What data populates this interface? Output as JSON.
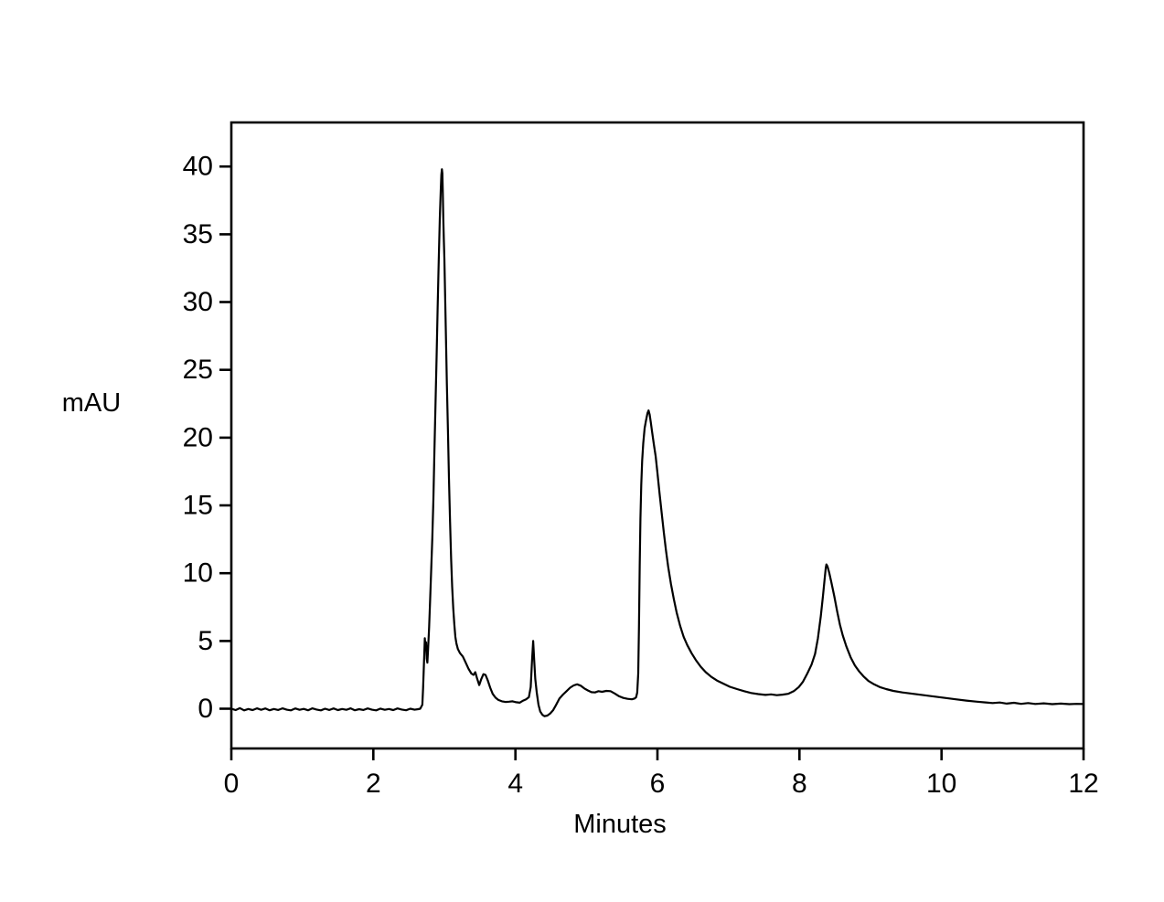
{
  "figure": {
    "kind": "chromatogram",
    "background": "#ffffff"
  },
  "chart_data": {
    "type": "line",
    "title": "",
    "xlabel": "Minutes",
    "ylabel": "mAU",
    "xlim": [
      0,
      12
    ],
    "ylim": [
      -2.93,
      43.25
    ],
    "xticks": [
      0,
      2,
      4,
      6,
      8,
      10,
      12
    ],
    "yticks": [
      0,
      5,
      10,
      15,
      20,
      25,
      30,
      35,
      40
    ],
    "grid": false,
    "legend": "none",
    "frame": "full-box",
    "line_color": "#000000",
    "axis_color": "#000000",
    "background": "#ffffff",
    "baseline_noise_mAU": 0.15,
    "peaks": [
      {
        "retention_min": 2.73,
        "height_mAU": 5.2
      },
      {
        "retention_min": 2.96,
        "height_mAU": 39.8
      },
      {
        "retention_min": 4.25,
        "height_mAU": 5.0
      },
      {
        "retention_min": 5.88,
        "height_mAU": 22.0
      },
      {
        "retention_min": 8.38,
        "height_mAU": 10.7
      }
    ],
    "series": [
      {
        "name": "detector-signal",
        "points": [
          [
            0.0,
            0.0
          ],
          [
            0.06,
            -0.1
          ],
          [
            0.12,
            0.04
          ],
          [
            0.18,
            -0.12
          ],
          [
            0.24,
            -0.02
          ],
          [
            0.3,
            -0.1
          ],
          [
            0.36,
            0.03
          ],
          [
            0.42,
            -0.08
          ],
          [
            0.48,
            0.02
          ],
          [
            0.54,
            -0.11
          ],
          [
            0.6,
            -0.02
          ],
          [
            0.66,
            -0.09
          ],
          [
            0.72,
            0.03
          ],
          [
            0.78,
            -0.07
          ],
          [
            0.84,
            -0.12
          ],
          [
            0.9,
            0.02
          ],
          [
            0.96,
            -0.08
          ],
          [
            1.02,
            -0.01
          ],
          [
            1.08,
            -0.11
          ],
          [
            1.14,
            0.03
          ],
          [
            1.2,
            -0.06
          ],
          [
            1.26,
            -0.12
          ],
          [
            1.32,
            0.0
          ],
          [
            1.38,
            -0.09
          ],
          [
            1.44,
            0.02
          ],
          [
            1.5,
            -0.1
          ],
          [
            1.56,
            -0.02
          ],
          [
            1.62,
            -0.08
          ],
          [
            1.68,
            0.03
          ],
          [
            1.74,
            -0.11
          ],
          [
            1.8,
            -0.03
          ],
          [
            1.86,
            -0.09
          ],
          [
            1.92,
            0.02
          ],
          [
            1.98,
            -0.07
          ],
          [
            2.04,
            -0.12
          ],
          [
            2.1,
            0.01
          ],
          [
            2.16,
            -0.08
          ],
          [
            2.22,
            -0.02
          ],
          [
            2.28,
            -0.1
          ],
          [
            2.34,
            0.02
          ],
          [
            2.4,
            -0.06
          ],
          [
            2.46,
            -0.11
          ],
          [
            2.52,
            0.0
          ],
          [
            2.58,
            -0.07
          ],
          [
            2.63,
            -0.03
          ],
          [
            2.66,
            0.0
          ],
          [
            2.69,
            0.3
          ],
          [
            2.7,
            1.5
          ],
          [
            2.715,
            3.8
          ],
          [
            2.725,
            5.2
          ],
          [
            2.735,
            4.4
          ],
          [
            2.742,
            4.9
          ],
          [
            2.752,
            3.7
          ],
          [
            2.76,
            3.4
          ],
          [
            2.77,
            4.3
          ],
          [
            2.785,
            6.0
          ],
          [
            2.8,
            8.2
          ],
          [
            2.815,
            10.3
          ],
          [
            2.83,
            12.6
          ],
          [
            2.845,
            15.5
          ],
          [
            2.86,
            19.0
          ],
          [
            2.875,
            22.5
          ],
          [
            2.89,
            26.0
          ],
          [
            2.905,
            29.5
          ],
          [
            2.92,
            33.0
          ],
          [
            2.935,
            36.2
          ],
          [
            2.948,
            38.2
          ],
          [
            2.958,
            39.4
          ],
          [
            2.965,
            39.8
          ],
          [
            2.972,
            39.5
          ],
          [
            2.978,
            38.0
          ],
          [
            2.985,
            36.2
          ],
          [
            2.992,
            34.6
          ],
          [
            3.0,
            33.2
          ],
          [
            3.01,
            30.5
          ],
          [
            3.02,
            27.8
          ],
          [
            3.035,
            24.0
          ],
          [
            3.05,
            20.5
          ],
          [
            3.065,
            17.0
          ],
          [
            3.08,
            13.8
          ],
          [
            3.095,
            11.0
          ],
          [
            3.11,
            9.0
          ],
          [
            3.125,
            7.4
          ],
          [
            3.14,
            6.2
          ],
          [
            3.155,
            5.3
          ],
          [
            3.17,
            4.8
          ],
          [
            3.19,
            4.4
          ],
          [
            3.22,
            4.1
          ],
          [
            3.26,
            3.85
          ],
          [
            3.3,
            3.4
          ],
          [
            3.34,
            2.95
          ],
          [
            3.38,
            2.6
          ],
          [
            3.41,
            2.5
          ],
          [
            3.435,
            2.7
          ],
          [
            3.46,
            2.25
          ],
          [
            3.49,
            1.75
          ],
          [
            3.52,
            2.2
          ],
          [
            3.55,
            2.55
          ],
          [
            3.58,
            2.5
          ],
          [
            3.61,
            2.1
          ],
          [
            3.645,
            1.55
          ],
          [
            3.68,
            1.1
          ],
          [
            3.72,
            0.82
          ],
          [
            3.76,
            0.65
          ],
          [
            3.81,
            0.55
          ],
          [
            3.86,
            0.5
          ],
          [
            3.91,
            0.52
          ],
          [
            3.96,
            0.55
          ],
          [
            4.01,
            0.48
          ],
          [
            4.06,
            0.45
          ],
          [
            4.11,
            0.6
          ],
          [
            4.15,
            0.7
          ],
          [
            4.19,
            0.85
          ],
          [
            4.215,
            1.6
          ],
          [
            4.235,
            3.6
          ],
          [
            4.25,
            5.0
          ],
          [
            4.265,
            3.6
          ],
          [
            4.28,
            2.2
          ],
          [
            4.3,
            1.2
          ],
          [
            4.325,
            0.3
          ],
          [
            4.35,
            -0.2
          ],
          [
            4.38,
            -0.45
          ],
          [
            4.41,
            -0.55
          ],
          [
            4.45,
            -0.5
          ],
          [
            4.49,
            -0.35
          ],
          [
            4.53,
            -0.12
          ],
          [
            4.57,
            0.25
          ],
          [
            4.62,
            0.75
          ],
          [
            4.67,
            1.05
          ],
          [
            4.72,
            1.3
          ],
          [
            4.77,
            1.55
          ],
          [
            4.82,
            1.72
          ],
          [
            4.87,
            1.8
          ],
          [
            4.92,
            1.7
          ],
          [
            4.97,
            1.5
          ],
          [
            5.02,
            1.35
          ],
          [
            5.07,
            1.22
          ],
          [
            5.12,
            1.2
          ],
          [
            5.17,
            1.3
          ],
          [
            5.22,
            1.25
          ],
          [
            5.28,
            1.32
          ],
          [
            5.34,
            1.3
          ],
          [
            5.4,
            1.12
          ],
          [
            5.46,
            0.92
          ],
          [
            5.52,
            0.8
          ],
          [
            5.58,
            0.73
          ],
          [
            5.64,
            0.7
          ],
          [
            5.68,
            0.76
          ],
          [
            5.7,
            0.85
          ],
          [
            5.715,
            1.2
          ],
          [
            5.73,
            2.6
          ],
          [
            5.74,
            6.0
          ],
          [
            5.75,
            10.5
          ],
          [
            5.76,
            14.0
          ],
          [
            5.772,
            16.5
          ],
          [
            5.785,
            18.3
          ],
          [
            5.8,
            19.6
          ],
          [
            5.82,
            20.7
          ],
          [
            5.84,
            21.3
          ],
          [
            5.86,
            21.8
          ],
          [
            5.875,
            22.0
          ],
          [
            5.89,
            21.7
          ],
          [
            5.905,
            21.2
          ],
          [
            5.925,
            20.4
          ],
          [
            5.95,
            19.5
          ],
          [
            5.975,
            18.6
          ],
          [
            6.0,
            17.4
          ],
          [
            6.03,
            15.9
          ],
          [
            6.06,
            14.4
          ],
          [
            6.09,
            13.0
          ],
          [
            6.12,
            11.7
          ],
          [
            6.15,
            10.5
          ],
          [
            6.19,
            9.2
          ],
          [
            6.23,
            8.1
          ],
          [
            6.27,
            7.1
          ],
          [
            6.32,
            6.1
          ],
          [
            6.37,
            5.3
          ],
          [
            6.42,
            4.7
          ],
          [
            6.48,
            4.1
          ],
          [
            6.54,
            3.6
          ],
          [
            6.61,
            3.1
          ],
          [
            6.68,
            2.7
          ],
          [
            6.76,
            2.35
          ],
          [
            6.84,
            2.08
          ],
          [
            6.93,
            1.85
          ],
          [
            7.02,
            1.62
          ],
          [
            7.12,
            1.45
          ],
          [
            7.22,
            1.3
          ],
          [
            7.32,
            1.16
          ],
          [
            7.42,
            1.08
          ],
          [
            7.52,
            1.02
          ],
          [
            7.6,
            1.06
          ],
          [
            7.68,
            1.0
          ],
          [
            7.76,
            1.04
          ],
          [
            7.84,
            1.1
          ],
          [
            7.92,
            1.3
          ],
          [
            7.99,
            1.6
          ],
          [
            8.05,
            2.0
          ],
          [
            8.11,
            2.6
          ],
          [
            8.17,
            3.25
          ],
          [
            8.22,
            4.05
          ],
          [
            8.26,
            5.2
          ],
          [
            8.3,
            6.8
          ],
          [
            8.33,
            8.3
          ],
          [
            8.355,
            9.6
          ],
          [
            8.37,
            10.4
          ],
          [
            8.38,
            10.65
          ],
          [
            8.395,
            10.5
          ],
          [
            8.42,
            10.0
          ],
          [
            8.45,
            9.3
          ],
          [
            8.49,
            8.3
          ],
          [
            8.53,
            7.2
          ],
          [
            8.57,
            6.2
          ],
          [
            8.61,
            5.4
          ],
          [
            8.66,
            4.6
          ],
          [
            8.72,
            3.8
          ],
          [
            8.78,
            3.2
          ],
          [
            8.84,
            2.75
          ],
          [
            8.9,
            2.4
          ],
          [
            8.97,
            2.05
          ],
          [
            9.05,
            1.8
          ],
          [
            9.13,
            1.6
          ],
          [
            9.22,
            1.45
          ],
          [
            9.32,
            1.32
          ],
          [
            9.45,
            1.2
          ],
          [
            9.6,
            1.1
          ],
          [
            9.75,
            1.0
          ],
          [
            9.9,
            0.9
          ],
          [
            10.05,
            0.8
          ],
          [
            10.2,
            0.7
          ],
          [
            10.35,
            0.6
          ],
          [
            10.5,
            0.52
          ],
          [
            10.62,
            0.47
          ],
          [
            10.72,
            0.42
          ],
          [
            10.82,
            0.46
          ],
          [
            10.92,
            0.38
          ],
          [
            11.02,
            0.44
          ],
          [
            11.12,
            0.36
          ],
          [
            11.22,
            0.42
          ],
          [
            11.32,
            0.35
          ],
          [
            11.44,
            0.4
          ],
          [
            11.56,
            0.34
          ],
          [
            11.68,
            0.38
          ],
          [
            11.8,
            0.34
          ],
          [
            11.9,
            0.36
          ],
          [
            12.0,
            0.35
          ]
        ]
      }
    ]
  }
}
